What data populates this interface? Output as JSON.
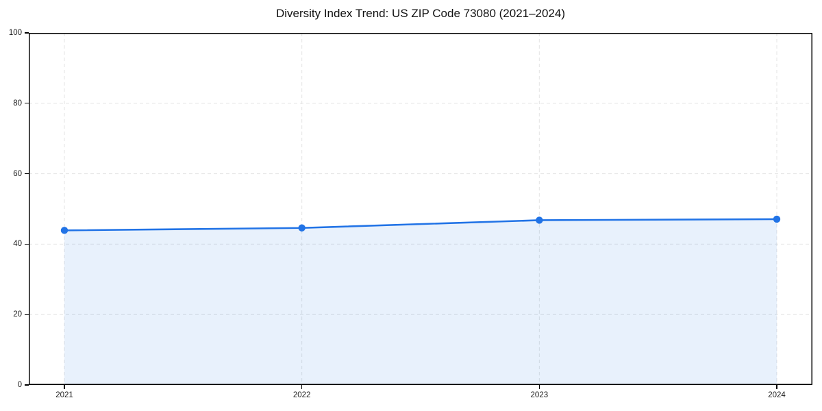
{
  "figure": {
    "title": "Diversity Index Trend: US ZIP Code 73080 (2021–2024)"
  },
  "chart_data": {
    "type": "area",
    "categories": [
      "2021",
      "2022",
      "2023",
      "2024"
    ],
    "values": [
      43.9,
      44.6,
      46.8,
      47.1
    ],
    "series": [
      {
        "name": "Diversity Index",
        "values": [
          43.9,
          44.6,
          46.8,
          47.1
        ]
      }
    ],
    "title": "Diversity Index Trend: US ZIP Code 73080 (2021–2024)",
    "xlabel": "",
    "ylabel": "",
    "ylim": [
      0,
      100
    ],
    "yticks": [
      0,
      20,
      40,
      60,
      80,
      100
    ],
    "grid": "dashed-both-axes",
    "legend": "none",
    "marker": "circle",
    "line_color": "#2173e6",
    "marker_color": "#2173e6",
    "fill_color": "rgba(33, 115, 230, 0.10)",
    "grid_color": "#e3e3e3",
    "spine_color": "#000000",
    "x_margin_fraction": 0.05
  }
}
